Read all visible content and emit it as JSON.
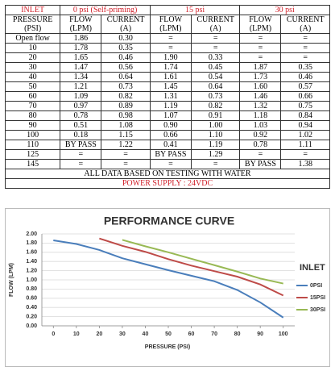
{
  "table": {
    "header_groups": [
      "INLET",
      "0 psi (Self-priming)",
      "15 psi",
      "30 psi"
    ],
    "columns": [
      "PRESSURE (PSI)",
      "FLOW (LPM)",
      "CURRENT (A)",
      "FLOW (LPM)",
      "CURRENT (A)",
      "FLOW (LPM)",
      "CURRENT (A)"
    ],
    "rows": [
      [
        "Open flow",
        "1.86",
        "0.30",
        "=",
        "=",
        "=",
        "="
      ],
      [
        "10",
        "1.78",
        "0.35",
        "=",
        "=",
        "=",
        "="
      ],
      [
        "20",
        "1.65",
        "0.46",
        "1.90",
        "0.33",
        "=",
        "="
      ],
      [
        "30",
        "1.47",
        "0.56",
        "1.74",
        "0.45",
        "1.87",
        "0.35"
      ],
      [
        "40",
        "1.34",
        "0.64",
        "1.61",
        "0.54",
        "1.73",
        "0.46"
      ],
      [
        "50",
        "1.21",
        "0.73",
        "1.45",
        "0.64",
        "1.60",
        "0.57"
      ],
      [
        "60",
        "1.09",
        "0.82",
        "1.31",
        "0.73",
        "1.46",
        "0.66"
      ],
      [
        "70",
        "0.97",
        "0.89",
        "1.19",
        "0.82",
        "1.32",
        "0.75"
      ],
      [
        "80",
        "0.78",
        "0.98",
        "1.07",
        "0.91",
        "1.18",
        "0.84"
      ],
      [
        "90",
        "0.51",
        "1.08",
        "0.90",
        "1.00",
        "1.03",
        "0.94"
      ],
      [
        "100",
        "0.18",
        "1.15",
        "0.66",
        "1.10",
        "0.92",
        "1.02"
      ],
      [
        "110",
        "BY PASS",
        "1.22",
        "0.41",
        "1.19",
        "0.78",
        "1.11"
      ],
      [
        "125",
        "=",
        "=",
        "BY PASS",
        "1.29",
        "=",
        "="
      ],
      [
        "145",
        "=",
        "=",
        "=",
        "=",
        "BY PASS",
        "1.38"
      ]
    ],
    "notes": [
      "ALL DATA BASED ON TESTING WITH WATER",
      "POWER SUPPLY : 24VDC"
    ]
  },
  "chart_data": {
    "type": "line",
    "title": "PERFORMANCE CURVE",
    "x_label": "PRESSURE (PSI)",
    "y_label": "FLOW (LPM)",
    "legend_title": "INLET",
    "legend": "right",
    "grid": true,
    "x": [
      0,
      10,
      20,
      30,
      40,
      50,
      60,
      70,
      80,
      90,
      100
    ],
    "xlim": [
      -5,
      105
    ],
    "xticks": [
      0,
      10,
      20,
      30,
      40,
      50,
      60,
      70,
      80,
      90,
      100
    ],
    "ylim": [
      0,
      2
    ],
    "yticks": [
      {
        "value": 0,
        "label": "0.00"
      },
      {
        "value": 0.2,
        "label": "0.20"
      },
      {
        "value": 0.4,
        "label": "0.40"
      },
      {
        "value": 0.6,
        "label": "0.60"
      },
      {
        "value": 0.8,
        "label": "0.80"
      },
      {
        "value": 1,
        "label": "1.00"
      },
      {
        "value": 1.2,
        "label": "1.20"
      },
      {
        "value": 1.4,
        "label": "1.40"
      },
      {
        "value": 1.6,
        "label": "1.60"
      },
      {
        "value": 1.8,
        "label": "1.80"
      },
      {
        "value": 2,
        "label": "2.00"
      }
    ],
    "series": [
      {
        "name": "0PSI",
        "color": "#4a7ebb",
        "values": [
          1.86,
          1.78,
          1.65,
          1.47,
          1.34,
          1.21,
          1.09,
          0.97,
          0.78,
          0.51,
          0.18
        ]
      },
      {
        "name": "15PSI",
        "color": "#be4b48",
        "values": [
          null,
          null,
          1.9,
          1.74,
          1.61,
          1.45,
          1.31,
          1.19,
          1.07,
          0.9,
          0.66
        ]
      },
      {
        "name": "30PSI",
        "color": "#98b954",
        "values": [
          null,
          null,
          null,
          1.87,
          1.73,
          1.6,
          1.46,
          1.32,
          1.18,
          1.03,
          0.92
        ]
      }
    ]
  }
}
